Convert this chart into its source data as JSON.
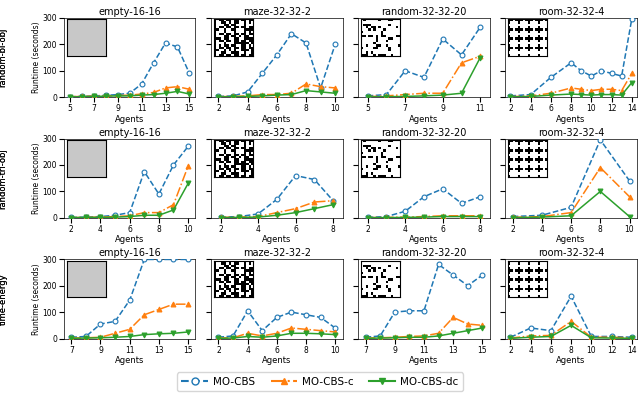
{
  "row_labels": [
    "random-bi-obj",
    "random-tri-obj",
    "time-energy"
  ],
  "col_titles": [
    "empty-16-16",
    "maze-32-32-2",
    "random-32-32-20",
    "room-32-32-4"
  ],
  "ylabel": "Runtime (seconds)",
  "xlabel": "Agents",
  "ylim": [
    0,
    300
  ],
  "yticks": [
    0,
    100,
    200,
    300
  ],
  "legend_labels": [
    "MO-CBS",
    "MO-CBS-c",
    "MO-CBS-dc"
  ],
  "line_colors": [
    "#1f77b4",
    "#ff7f0e",
    "#2ca02c"
  ],
  "line_styles": [
    "--",
    "-.",
    "-"
  ],
  "markers": [
    "o",
    "^",
    "v"
  ],
  "subplots": [
    {
      "row": 0,
      "col": 0,
      "xticks": [
        5,
        7,
        9,
        11,
        13,
        15
      ],
      "xlim": [
        4.5,
        15.5
      ],
      "data": [
        {
          "x": [
            5,
            6,
            7,
            8,
            9,
            10,
            11,
            12,
            13,
            14,
            15
          ],
          "y": [
            2,
            3,
            5,
            7,
            10,
            15,
            50,
            130,
            205,
            190,
            90
          ]
        },
        {
          "x": [
            5,
            6,
            7,
            8,
            9,
            10,
            11,
            12,
            13,
            14,
            15
          ],
          "y": [
            2,
            3,
            4,
            5,
            6,
            8,
            12,
            18,
            35,
            40,
            30
          ]
        },
        {
          "x": [
            5,
            6,
            7,
            8,
            9,
            10,
            11,
            12,
            13,
            14,
            15
          ],
          "y": [
            1,
            2,
            3,
            4,
            5,
            5,
            8,
            10,
            15,
            22,
            12
          ]
        }
      ]
    },
    {
      "row": 0,
      "col": 1,
      "xticks": [
        2,
        4,
        6,
        8,
        10
      ],
      "xlim": [
        1.5,
        10.5
      ],
      "data": [
        {
          "x": [
            2,
            3,
            4,
            5,
            6,
            7,
            8,
            9,
            10
          ],
          "y": [
            3,
            5,
            20,
            90,
            160,
            240,
            205,
            35,
            200
          ]
        },
        {
          "x": [
            2,
            3,
            4,
            5,
            6,
            7,
            8,
            9,
            10
          ],
          "y": [
            2,
            3,
            5,
            10,
            10,
            15,
            50,
            40,
            35
          ]
        },
        {
          "x": [
            2,
            3,
            4,
            5,
            6,
            7,
            8,
            9,
            10
          ],
          "y": [
            1,
            2,
            3,
            5,
            8,
            10,
            25,
            20,
            15
          ]
        }
      ]
    },
    {
      "row": 0,
      "col": 2,
      "xticks": [
        5,
        7,
        9,
        11
      ],
      "xlim": [
        4.5,
        11.5
      ],
      "data": [
        {
          "x": [
            5,
            6,
            7,
            8,
            9,
            10,
            11
          ],
          "y": [
            5,
            10,
            100,
            75,
            220,
            160,
            265
          ]
        },
        {
          "x": [
            5,
            6,
            7,
            8,
            9,
            10,
            11
          ],
          "y": [
            2,
            5,
            10,
            15,
            15,
            130,
            155
          ]
        },
        {
          "x": [
            5,
            6,
            7,
            8,
            9,
            10,
            11
          ],
          "y": [
            1,
            2,
            3,
            5,
            8,
            15,
            150
          ]
        }
      ]
    },
    {
      "row": 0,
      "col": 3,
      "xticks": [
        2,
        4,
        6,
        8,
        10,
        12,
        14
      ],
      "xlim": [
        1.5,
        14.5
      ],
      "data": [
        {
          "x": [
            2,
            4,
            6,
            8,
            9,
            10,
            11,
            12,
            13,
            14
          ],
          "y": [
            5,
            10,
            75,
            130,
            100,
            80,
            100,
            90,
            80,
            295
          ]
        },
        {
          "x": [
            2,
            4,
            6,
            8,
            9,
            10,
            11,
            12,
            13,
            14
          ],
          "y": [
            2,
            5,
            15,
            35,
            30,
            25,
            30,
            30,
            25,
            90
          ]
        },
        {
          "x": [
            2,
            4,
            6,
            8,
            9,
            10,
            11,
            12,
            13,
            14
          ],
          "y": [
            1,
            3,
            8,
            12,
            10,
            8,
            10,
            10,
            8,
            55
          ]
        }
      ]
    },
    {
      "row": 1,
      "col": 0,
      "xticks": [
        2,
        4,
        6,
        8,
        10
      ],
      "xlim": [
        1.5,
        10.5
      ],
      "data": [
        {
          "x": [
            2,
            3,
            4,
            5,
            6,
            7,
            8,
            9,
            10
          ],
          "y": [
            2,
            3,
            5,
            10,
            20,
            175,
            90,
            200,
            270
          ]
        },
        {
          "x": [
            2,
            3,
            4,
            5,
            6,
            7,
            8,
            9,
            10
          ],
          "y": [
            1,
            2,
            3,
            5,
            8,
            20,
            20,
            50,
            195
          ]
        },
        {
          "x": [
            2,
            3,
            4,
            5,
            6,
            7,
            8,
            9,
            10
          ],
          "y": [
            1,
            2,
            2,
            3,
            5,
            10,
            10,
            30,
            130
          ]
        }
      ]
    },
    {
      "row": 1,
      "col": 1,
      "xticks": [
        2,
        4,
        6,
        8
      ],
      "xlim": [
        1.5,
        8.5
      ],
      "data": [
        {
          "x": [
            2,
            3,
            4,
            5,
            6,
            7,
            8
          ],
          "y": [
            3,
            5,
            15,
            70,
            160,
            145,
            65
          ]
        },
        {
          "x": [
            2,
            3,
            4,
            5,
            6,
            7,
            8
          ],
          "y": [
            2,
            3,
            5,
            20,
            35,
            60,
            65
          ]
        },
        {
          "x": [
            2,
            3,
            4,
            5,
            6,
            7,
            8
          ],
          "y": [
            1,
            2,
            3,
            10,
            20,
            35,
            50
          ]
        }
      ]
    },
    {
      "row": 1,
      "col": 2,
      "xticks": [
        2,
        4,
        6,
        8
      ],
      "xlim": [
        1.5,
        8.5
      ],
      "data": [
        {
          "x": [
            2,
            3,
            4,
            5,
            6,
            7,
            8
          ],
          "y": [
            2,
            5,
            25,
            80,
            110,
            55,
            80
          ]
        },
        {
          "x": [
            2,
            3,
            4,
            5,
            6,
            7,
            8
          ],
          "y": [
            1,
            2,
            3,
            5,
            8,
            8,
            8
          ]
        },
        {
          "x": [
            2,
            3,
            4,
            5,
            6,
            7,
            8
          ],
          "y": [
            1,
            1,
            2,
            3,
            5,
            5,
            5
          ]
        }
      ]
    },
    {
      "row": 1,
      "col": 3,
      "xticks": [
        2,
        4,
        6,
        8,
        10
      ],
      "xlim": [
        1.5,
        10.5
      ],
      "data": [
        {
          "x": [
            2,
            4,
            6,
            8,
            10
          ],
          "y": [
            5,
            10,
            40,
            295,
            140
          ]
        },
        {
          "x": [
            2,
            4,
            6,
            8,
            10
          ],
          "y": [
            2,
            5,
            20,
            190,
            80
          ]
        },
        {
          "x": [
            2,
            4,
            6,
            8,
            10
          ],
          "y": [
            1,
            3,
            8,
            100,
            5
          ]
        }
      ]
    },
    {
      "row": 2,
      "col": 0,
      "xticks": [
        7,
        9,
        11,
        13,
        15
      ],
      "xlim": [
        6.5,
        15.5
      ],
      "data": [
        {
          "x": [
            7,
            8,
            9,
            10,
            11,
            12,
            13,
            14,
            15
          ],
          "y": [
            5,
            8,
            55,
            65,
            145,
            299,
            299,
            299,
            299
          ]
        },
        {
          "x": [
            7,
            8,
            9,
            10,
            11,
            12,
            13,
            14,
            15
          ],
          "y": [
            2,
            3,
            5,
            20,
            35,
            90,
            110,
            130,
            130
          ]
        },
        {
          "x": [
            7,
            8,
            9,
            10,
            11,
            12,
            13,
            14,
            15
          ],
          "y": [
            1,
            2,
            3,
            5,
            8,
            15,
            18,
            20,
            25
          ]
        }
      ]
    },
    {
      "row": 2,
      "col": 1,
      "xticks": [
        2,
        4,
        6,
        8,
        10
      ],
      "xlim": [
        1.5,
        10.5
      ],
      "data": [
        {
          "x": [
            2,
            3,
            4,
            5,
            6,
            7,
            8,
            9,
            10
          ],
          "y": [
            5,
            10,
            105,
            30,
            80,
            100,
            90,
            80,
            40
          ]
        },
        {
          "x": [
            2,
            3,
            4,
            5,
            6,
            7,
            8,
            9,
            10
          ],
          "y": [
            2,
            3,
            20,
            10,
            20,
            40,
            35,
            30,
            25
          ]
        },
        {
          "x": [
            2,
            3,
            4,
            5,
            6,
            7,
            8,
            9,
            10
          ],
          "y": [
            1,
            2,
            8,
            5,
            10,
            20,
            20,
            18,
            15
          ]
        }
      ]
    },
    {
      "row": 2,
      "col": 2,
      "xticks": [
        7,
        9,
        11,
        13,
        15
      ],
      "xlim": [
        6.5,
        15.5
      ],
      "data": [
        {
          "x": [
            7,
            8,
            9,
            10,
            11,
            12,
            13,
            14,
            15
          ],
          "y": [
            5,
            10,
            100,
            105,
            105,
            280,
            240,
            200,
            240
          ]
        },
        {
          "x": [
            7,
            8,
            9,
            10,
            11,
            12,
            13,
            14,
            15
          ],
          "y": [
            2,
            3,
            5,
            8,
            10,
            20,
            80,
            55,
            50
          ]
        },
        {
          "x": [
            7,
            8,
            9,
            10,
            11,
            12,
            13,
            14,
            15
          ],
          "y": [
            1,
            2,
            3,
            5,
            5,
            10,
            20,
            30,
            40
          ]
        }
      ]
    },
    {
      "row": 2,
      "col": 3,
      "xticks": [
        2,
        4,
        6,
        8,
        10,
        12,
        14
      ],
      "xlim": [
        1.5,
        14.5
      ],
      "data": [
        {
          "x": [
            2,
            4,
            6,
            8,
            10,
            12,
            14
          ],
          "y": [
            5,
            40,
            30,
            160,
            8,
            8,
            5
          ]
        },
        {
          "x": [
            2,
            4,
            6,
            8,
            10,
            12,
            14
          ],
          "y": [
            2,
            10,
            12,
            65,
            5,
            5,
            3
          ]
        },
        {
          "x": [
            2,
            4,
            6,
            8,
            10,
            12,
            14
          ],
          "y": [
            1,
            5,
            8,
            50,
            3,
            2,
            1
          ]
        }
      ]
    }
  ],
  "map_types": [
    "empty",
    "maze",
    "random",
    "room"
  ],
  "figsize": [
    6.4,
    3.96
  ],
  "dpi": 100
}
